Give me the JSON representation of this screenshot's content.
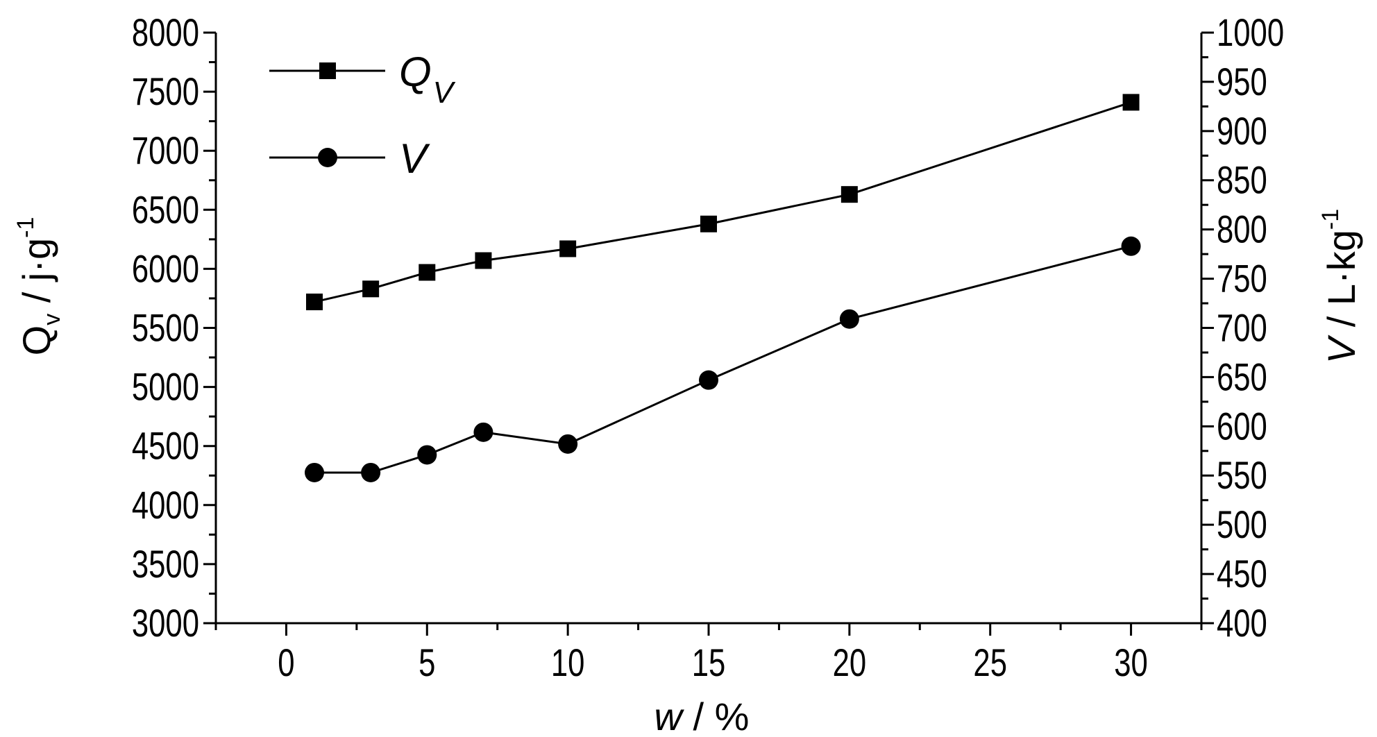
{
  "chart_data": {
    "type": "line",
    "x": [
      1,
      3,
      5,
      7,
      10,
      15,
      20,
      30
    ],
    "xlabel": {
      "var": "w",
      "rest": " / %"
    },
    "xlim": [
      -2.5,
      32.5
    ],
    "xticks": [
      0,
      5,
      10,
      15,
      20,
      25,
      30
    ],
    "ylabel_left": {
      "main": "Q",
      "sub": "v",
      "rest": " / j·g",
      "sup": "-1"
    },
    "ylim_left": [
      3000,
      8000
    ],
    "yticks_left": [
      3000,
      3500,
      4000,
      4500,
      5000,
      5500,
      6000,
      6500,
      7000,
      7500,
      8000
    ],
    "ylabel_right": {
      "var": "V",
      "rest": " / L·kg",
      "sup": "-1"
    },
    "ylim_right": [
      400,
      1000
    ],
    "yticks_right": [
      400,
      450,
      500,
      550,
      600,
      650,
      700,
      750,
      800,
      850,
      900,
      950,
      1000
    ],
    "grid": false,
    "legend_position": "top-left",
    "series": [
      {
        "name": "Q",
        "name_sub": "V",
        "axis": "left",
        "marker": "square",
        "values": [
          5720,
          5830,
          5970,
          6070,
          6170,
          6380,
          6630,
          7410
        ]
      },
      {
        "name": "V",
        "axis": "right",
        "marker": "circle",
        "values": [
          553,
          553,
          571,
          594,
          582,
          647,
          709,
          783
        ]
      }
    ]
  }
}
